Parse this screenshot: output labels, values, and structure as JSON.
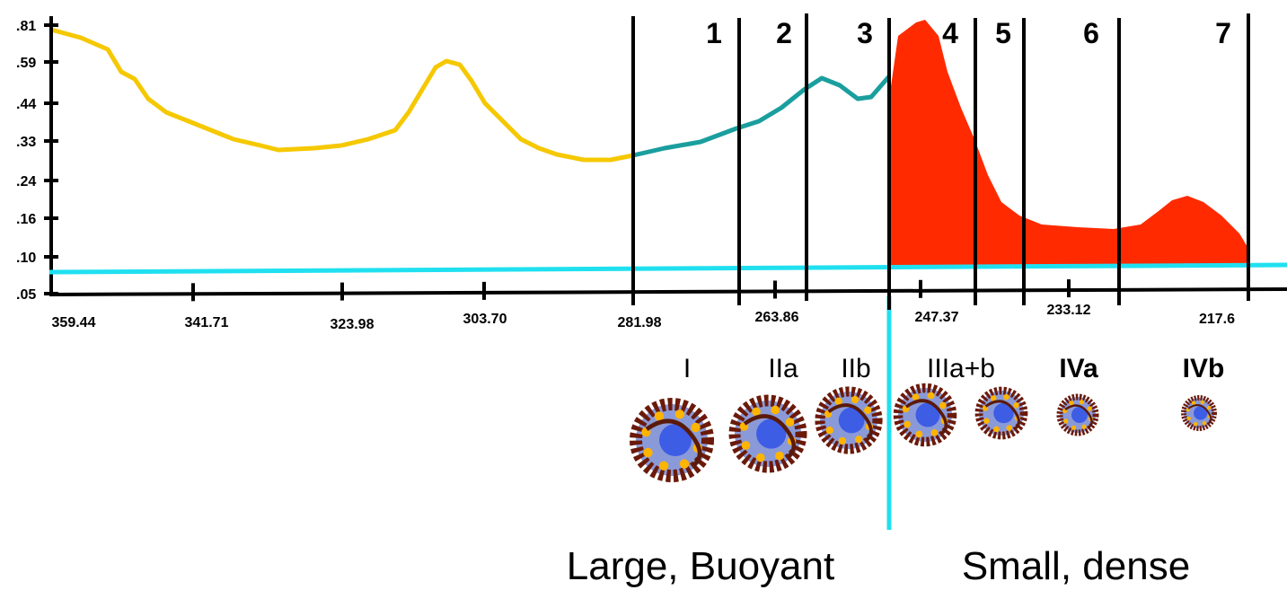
{
  "y_axis": {
    "labels": [
      ".81",
      ".59",
      ".44",
      ".33",
      ".24",
      ".16",
      ".10",
      ".05"
    ]
  },
  "x_axis": {
    "labels": [
      "359.44",
      "341.71",
      "323.98",
      "303.70",
      "281.98",
      "263.86",
      "247.37",
      "233.12",
      "217.6"
    ]
  },
  "bands": [
    "1",
    "2",
    "3",
    "4",
    "5",
    "6",
    "7"
  ],
  "subclasses": [
    "I",
    "IIa",
    "IIb",
    "IIIa+b",
    "IVa",
    "IVb"
  ],
  "captions": [
    "Large, Buoyant",
    "Small, dense"
  ]
}
